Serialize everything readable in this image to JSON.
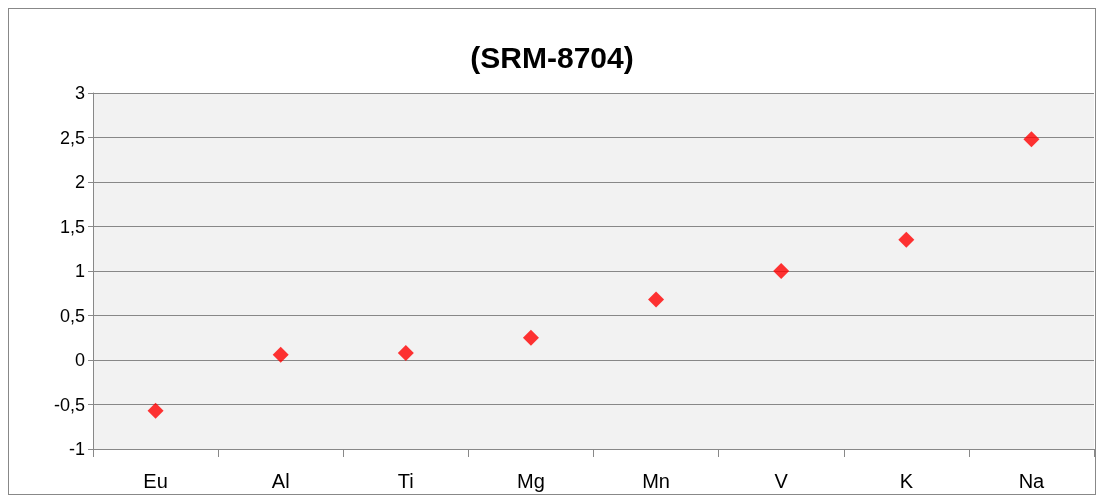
{
  "chart_data": {
    "type": "scatter",
    "title": "(SRM-8704)",
    "categories": [
      "Eu",
      "Al",
      "Ti",
      "Mg",
      "Mn",
      "V",
      "K",
      "Na"
    ],
    "values": [
      -0.57,
      0.06,
      0.08,
      0.25,
      0.68,
      1.0,
      1.35,
      2.48
    ],
    "color": "#ff0000",
    "marker": "diamond",
    "grid": "y",
    "ylim": [
      -1,
      3
    ],
    "yticks": [
      -1,
      {
        "value": -0.5,
        "label": "-0,5"
      },
      0,
      {
        "value": 0.5,
        "label": "0,5"
      },
      1,
      {
        "value": 1.5,
        "label": "1,5"
      },
      2,
      {
        "value": 2.5,
        "label": "2,5"
      },
      3
    ]
  }
}
